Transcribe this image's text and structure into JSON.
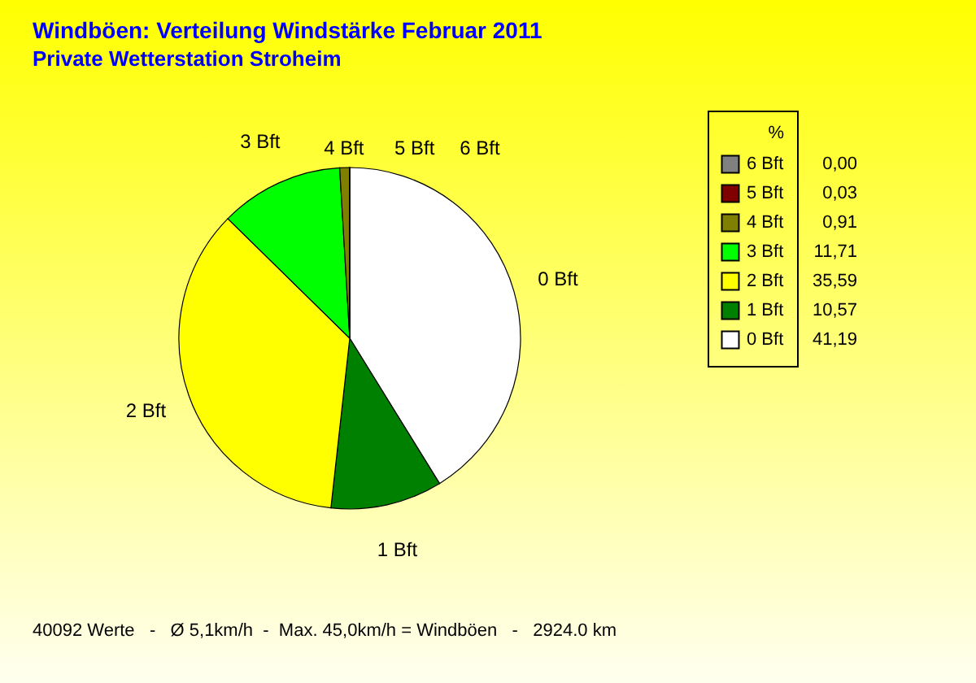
{
  "chart_data": {
    "type": "pie",
    "title": "Windböen: Verteilung Windstärke  Februar 2011",
    "subtitle": "Private Wetterstation Stroheim",
    "categories": [
      "0 Bft",
      "1 Bft",
      "2 Bft",
      "3 Bft",
      "4 Bft",
      "5 Bft",
      "6 Bft"
    ],
    "values": [
      41.19,
      10.57,
      35.59,
      11.71,
      0.91,
      0.03,
      0.0
    ],
    "value_labels": [
      "41,19",
      "10,57",
      "35,59",
      "11,71",
      "0,91",
      "0,03",
      "0,00"
    ],
    "colors": [
      "#ffffff",
      "#008000",
      "#ffff00",
      "#00ff00",
      "#808000",
      "#800000",
      "#808080"
    ],
    "legend_title": "%",
    "legend": "top right",
    "annotations": [
      "40092 Werte   -   Ø 5,1km/h  -  Max. 45,0km/h = Windböen   -   2924.0 km"
    ]
  }
}
